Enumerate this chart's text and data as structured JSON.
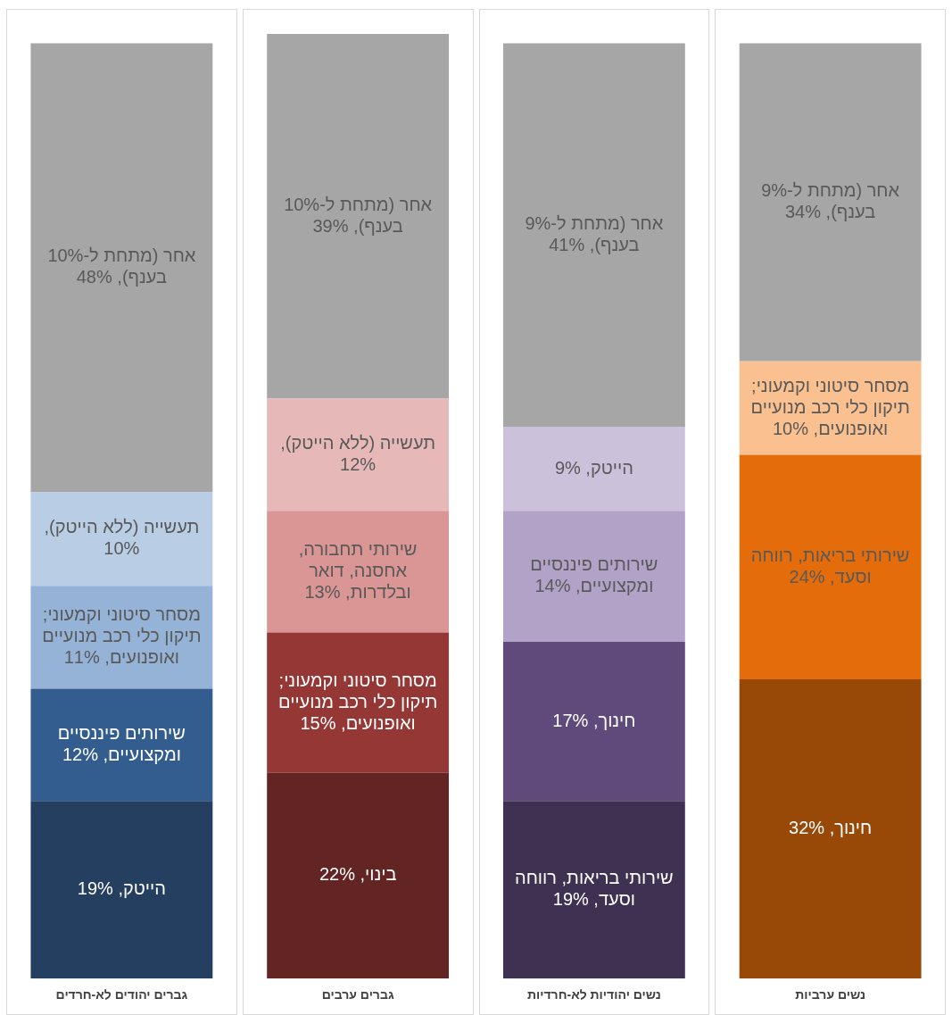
{
  "chart_data": {
    "type": "bar",
    "stacked": true,
    "categories": [
      "גברים יהודים לא-חרדים",
      "גברים ערבים",
      "נשים יהודיות לא-חרדיות",
      "נשים ערביות"
    ],
    "series": [
      {
        "color": "#243f60",
        "values": [
          19,
          null,
          null,
          null
        ],
        "value_labels": [
          "הייטק, 19%",
          null,
          null,
          null
        ]
      },
      {
        "color": "#335d8f",
        "values": [
          12,
          null,
          null,
          null
        ],
        "value_labels": [
          "שירותים פיננסיים ומקצועיים, 12%",
          null,
          null,
          null
        ]
      },
      {
        "color": "#95b3d7",
        "values": [
          11,
          null,
          null,
          null
        ],
        "value_labels": [
          "מסחר סיטוני וקמעוני; תיקון כלי רכב מנועיים ואופנועים, 11%",
          null,
          null,
          null
        ]
      },
      {
        "color": "#b9cde5",
        "values": [
          10,
          null,
          null,
          null
        ],
        "value_labels": [
          "תעשייה (ללא הייטק), 10%",
          null,
          null,
          null
        ]
      },
      {
        "color": "#a6a6a6",
        "values": [
          48,
          null,
          null,
          null
        ],
        "value_labels": [
          "אחר (מתחת ל-10% בענף), 48%",
          null,
          null,
          null
        ]
      },
      {
        "color": "#632523",
        "values": [
          null,
          22,
          null,
          null
        ],
        "value_labels": [
          null,
          "בינוי, 22%",
          null,
          null
        ]
      },
      {
        "color": "#953735",
        "values": [
          null,
          15,
          null,
          null
        ],
        "value_labels": [
          null,
          "מסחר סיטוני וקמעוני; תיקון כלי רכב מנועיים ואופנועים, 15%",
          null,
          null
        ]
      },
      {
        "color": "#d99694",
        "values": [
          null,
          13,
          null,
          null
        ],
        "value_labels": [
          null,
          "שירותי תחבורה, אחסנה, דואר ובלדרות, 13%",
          null,
          null
        ]
      },
      {
        "color": "#e6b9b8",
        "values": [
          null,
          12,
          null,
          null
        ],
        "value_labels": [
          null,
          "תעשייה (ללא הייטק), 12%",
          null,
          null
        ]
      },
      {
        "color": "#a6a6a6",
        "values": [
          null,
          39,
          null,
          null
        ],
        "value_labels": [
          null,
          "אחר (מתחת ל-10% בענף), 39%",
          null,
          null
        ]
      },
      {
        "color": "#3f3151",
        "values": [
          null,
          null,
          19,
          null
        ],
        "value_labels": [
          null,
          null,
          "שירותי בריאות, רווחה וסעד, 19%",
          null
        ]
      },
      {
        "color": "#604a7b",
        "values": [
          null,
          null,
          17,
          null
        ],
        "value_labels": [
          null,
          null,
          "חינוך, 17%",
          null
        ]
      },
      {
        "color": "#b3a2c7",
        "values": [
          null,
          null,
          14,
          null
        ],
        "value_labels": [
          null,
          null,
          "שירותים פיננסיים ומקצועיים, 14%",
          null
        ]
      },
      {
        "color": "#ccc1da",
        "values": [
          null,
          null,
          9,
          null
        ],
        "value_labels": [
          null,
          null,
          "הייטק, 9%",
          null
        ]
      },
      {
        "color": "#a6a6a6",
        "values": [
          null,
          null,
          41,
          null
        ],
        "value_labels": [
          null,
          null,
          "אחר (מתחת ל-9% בענף), 41%",
          null
        ]
      },
      {
        "color": "#984807",
        "values": [
          null,
          null,
          null,
          32
        ],
        "value_labels": [
          null,
          null,
          null,
          "חינוך, 32%"
        ]
      },
      {
        "color": "#e46c0a",
        "values": [
          null,
          null,
          null,
          24
        ],
        "value_labels": [
          null,
          null,
          null,
          "שירותי בריאות, רווחה וסעד, 24%"
        ]
      },
      {
        "color": "#fac090",
        "values": [
          null,
          null,
          null,
          10
        ],
        "value_labels": [
          null,
          null,
          null,
          "מסחר סיטוני וקמעוני; תיקון כלי רכב מנועיים ואופנועים, 10%"
        ]
      },
      {
        "color": "#a6a6a6",
        "values": [
          null,
          null,
          null,
          34
        ],
        "value_labels": [
          null,
          null,
          null,
          "אחר (מתחת ל-9% בענף), 34%"
        ]
      }
    ]
  }
}
